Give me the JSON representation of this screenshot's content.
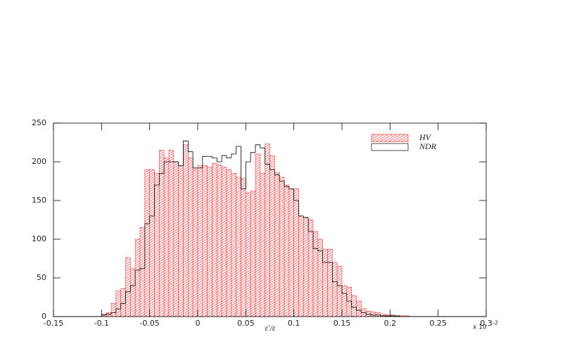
{
  "chart_data": {
    "type": "histogram",
    "xlabel": "ε'/ε",
    "x_multiplier": "x 10",
    "x_multiplier_exp": "-2",
    "bins": [
      -0.15,
      -0.145,
      -0.14,
      -0.135,
      -0.13,
      -0.125,
      -0.12,
      -0.115,
      -0.11,
      -0.105,
      -0.1,
      -0.095,
      -0.09,
      -0.085,
      -0.08,
      -0.075,
      -0.07,
      -0.065,
      -0.06,
      -0.055,
      -0.05,
      -0.045,
      -0.04,
      -0.035,
      -0.03,
      -0.025,
      -0.02,
      -0.015,
      -0.01,
      -0.005,
      0,
      0.005,
      0.01,
      0.015,
      0.02,
      0.025,
      0.03,
      0.035,
      0.04,
      0.045,
      0.05,
      0.055,
      0.06,
      0.065,
      0.07,
      0.075,
      0.08,
      0.085,
      0.09,
      0.095,
      0.1,
      0.105,
      0.11,
      0.115,
      0.12,
      0.125,
      0.13,
      0.135,
      0.14,
      0.145,
      0.15,
      0.155,
      0.16,
      0.165,
      0.17,
      0.175,
      0.18,
      0.185,
      0.19,
      0.195,
      0.2,
      0.205,
      0.21,
      0.215,
      0.22,
      0.225,
      0.23,
      0.235,
      0.24,
      0.245,
      0.25,
      0.255,
      0.26,
      0.265,
      0.27,
      0.275,
      0.28,
      0.285,
      0.29,
      0.295,
      0.3
    ],
    "series": [
      {
        "name": "HV",
        "color": "#e8383d",
        "style": "hatched",
        "values": [
          0,
          0,
          0,
          0,
          0,
          0,
          0,
          0,
          0,
          0,
          3,
          5,
          17,
          33,
          36,
          76,
          62,
          100,
          115,
          190,
          190,
          185,
          215,
          205,
          215,
          200,
          195,
          222,
          205,
          190,
          195,
          195,
          193,
          198,
          196,
          193,
          190,
          185,
          180,
          178,
          160,
          162,
          210,
          185,
          223,
          208,
          186,
          180,
          170,
          165,
          165,
          130,
          128,
          125,
          110,
          100,
          87,
          87,
          70,
          65,
          40,
          38,
          27,
          20,
          10,
          7,
          6,
          5,
          3,
          2,
          2,
          1,
          1,
          1,
          0,
          0,
          0,
          0,
          0,
          0,
          0,
          0,
          0,
          0,
          0,
          0,
          0,
          0,
          0,
          0
        ]
      },
      {
        "name": "NDR",
        "color": "#000000",
        "style": "outline",
        "values": [
          0,
          0,
          0,
          0,
          0,
          0,
          0,
          0,
          0,
          0,
          2,
          3,
          5,
          10,
          17,
          32,
          40,
          60,
          62,
          120,
          130,
          170,
          185,
          200,
          200,
          200,
          195,
          227,
          213,
          192,
          192,
          207,
          207,
          205,
          200,
          208,
          205,
          210,
          220,
          165,
          200,
          212,
          222,
          218,
          197,
          190,
          183,
          175,
          168,
          165,
          150,
          130,
          128,
          110,
          88,
          85,
          70,
          70,
          45,
          40,
          30,
          20,
          12,
          8,
          5,
          3,
          2,
          2,
          1,
          1,
          1,
          1,
          0,
          0,
          0,
          0,
          0,
          0,
          0,
          0,
          0,
          0,
          0,
          0,
          0,
          0,
          0,
          0,
          0,
          0
        ]
      }
    ],
    "xlim": [
      -0.15,
      0.3
    ],
    "xticks": [
      -0.15,
      -0.1,
      -0.05,
      0,
      0.05,
      0.1,
      0.15,
      0.2,
      0.25,
      0.3
    ],
    "ylim": [
      0,
      250
    ],
    "yticks": [
      0,
      50,
      100,
      150,
      200,
      250
    ],
    "legend": "upper-right"
  }
}
